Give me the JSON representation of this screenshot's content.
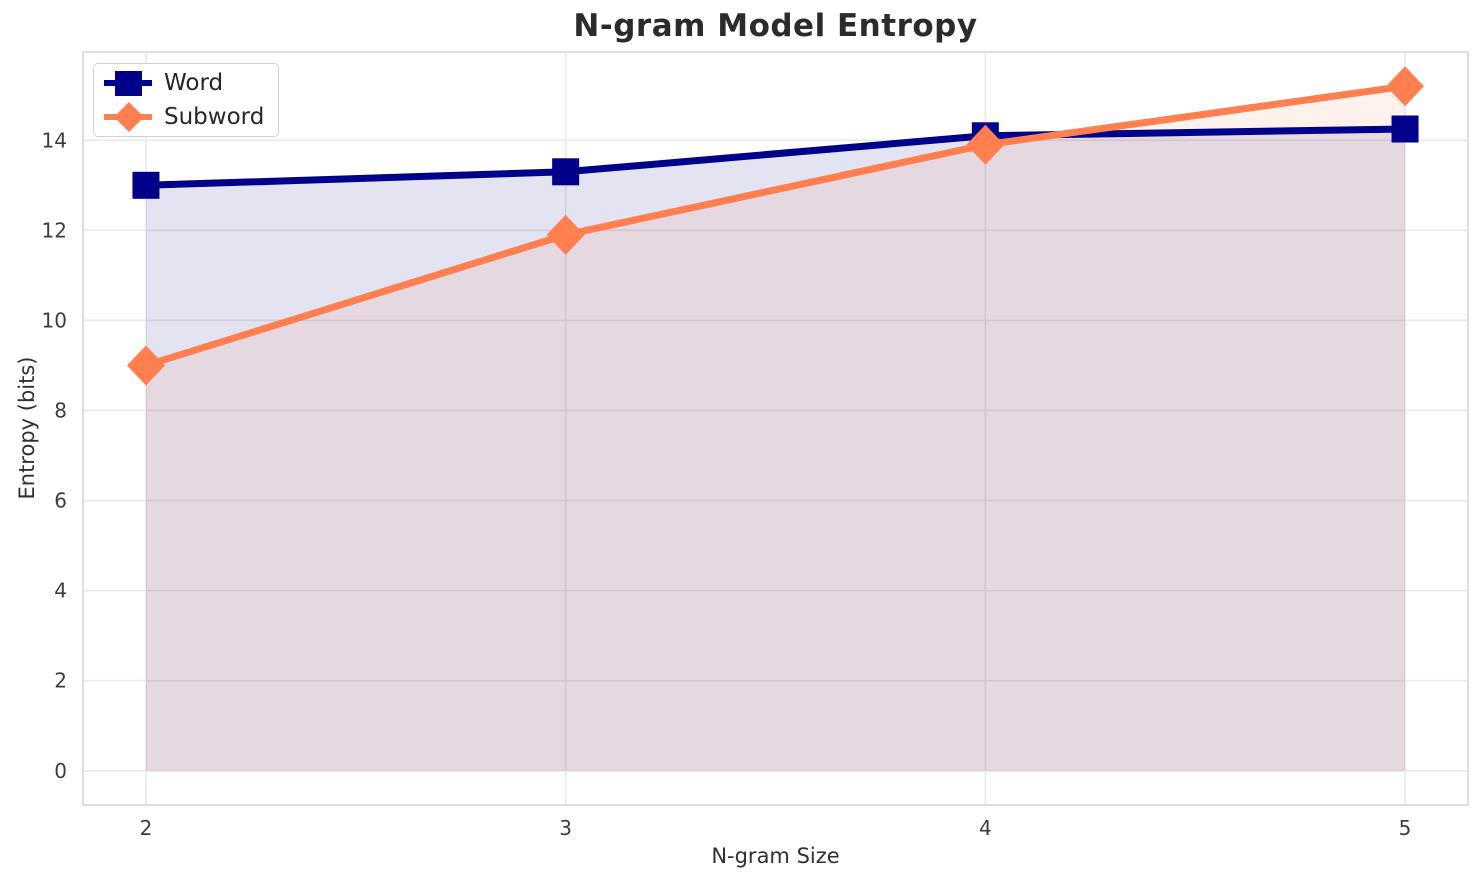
{
  "chart_data": {
    "type": "line",
    "title": "N-gram Model Entropy",
    "xlabel": "N-gram Size",
    "ylabel": "Entropy (bits)",
    "x": [
      2,
      3,
      4,
      5
    ],
    "series": [
      {
        "name": "Word",
        "marker": "square",
        "color": "#00008B",
        "fill_alpha": 0.11,
        "values": [
          13.0,
          13.3,
          14.1,
          14.25
        ]
      },
      {
        "name": "Subword",
        "marker": "diamond",
        "color": "#FF7F50",
        "fill_alpha": 0.1,
        "values": [
          9.0,
          11.9,
          13.9,
          15.2
        ]
      }
    ],
    "fill_to": 0,
    "xlim": [
      1.85,
      5.15
    ],
    "ylim": [
      -0.76,
      15.96
    ],
    "xticks": [
      2,
      3,
      4,
      5
    ],
    "yticks": [
      0,
      2,
      4,
      6,
      8,
      10,
      12,
      14
    ],
    "grid": true,
    "legend_position": "upper left"
  }
}
